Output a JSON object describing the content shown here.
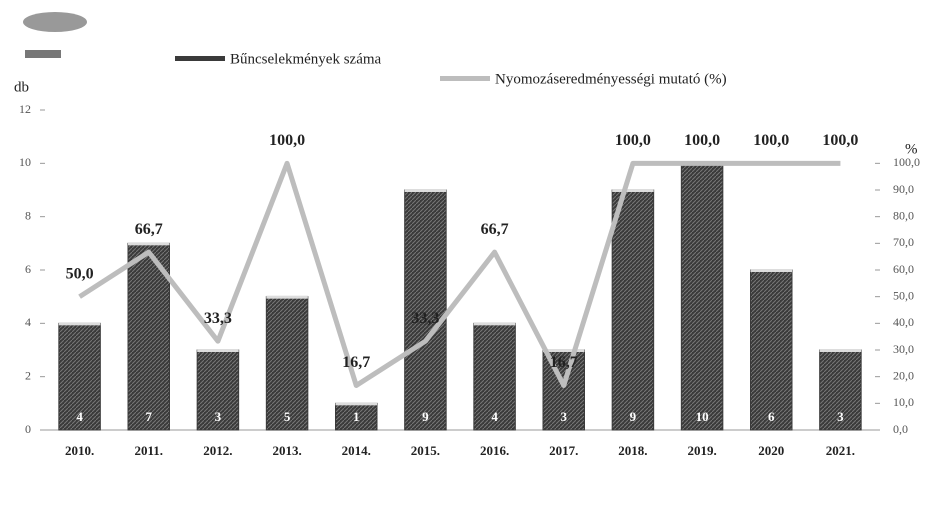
{
  "chart_data": {
    "type": "bar_line",
    "y_axis_label": "db",
    "y2_axis_label": "%",
    "categories": [
      "2010.",
      "2011.",
      "2012.",
      "2013.",
      "2014.",
      "2015.",
      "2016.",
      "2017.",
      "2018.",
      "2019.",
      "2020",
      "2021."
    ],
    "series": [
      {
        "name": "Bűncselekmények száma",
        "color": "#3a3a3a",
        "values": [
          4,
          7,
          3,
          5,
          1,
          9,
          4,
          3,
          9,
          10,
          6,
          3
        ]
      },
      {
        "name": "Nyomozáseredményességi mutató (%)",
        "color": "#bdbdbd",
        "axis": "y2",
        "values": [
          50,
          66.7,
          33.3,
          100,
          16.7,
          33.3,
          66.7,
          16.7,
          100,
          100,
          100,
          100
        ],
        "value_labels": [
          "50,0",
          "66,7",
          "33,3",
          "100,0",
          "16,7",
          "33,3",
          "66,7",
          "16,7",
          "100,0",
          "100,0",
          "100,0",
          "100,0"
        ]
      }
    ],
    "ylim": [
      0,
      12
    ],
    "yticks": [
      0,
      2,
      4,
      6,
      8,
      10,
      12
    ],
    "y2lim": [
      0,
      120
    ],
    "y2ticks": [
      {
        "value": 0,
        "label": "0,0"
      },
      {
        "value": 10,
        "label": "10,0"
      },
      {
        "value": 20,
        "label": "20,0"
      },
      {
        "value": 30,
        "label": "30,0"
      },
      {
        "value": 40,
        "label": "40,0"
      },
      {
        "value": 50,
        "label": "50,0"
      },
      {
        "value": 60,
        "label": "60,0"
      },
      {
        "value": 70,
        "label": "70,0"
      },
      {
        "value": 80,
        "label": "80,0"
      },
      {
        "value": 90,
        "label": "90,0"
      },
      {
        "value": 100,
        "label": "100,0"
      }
    ]
  }
}
